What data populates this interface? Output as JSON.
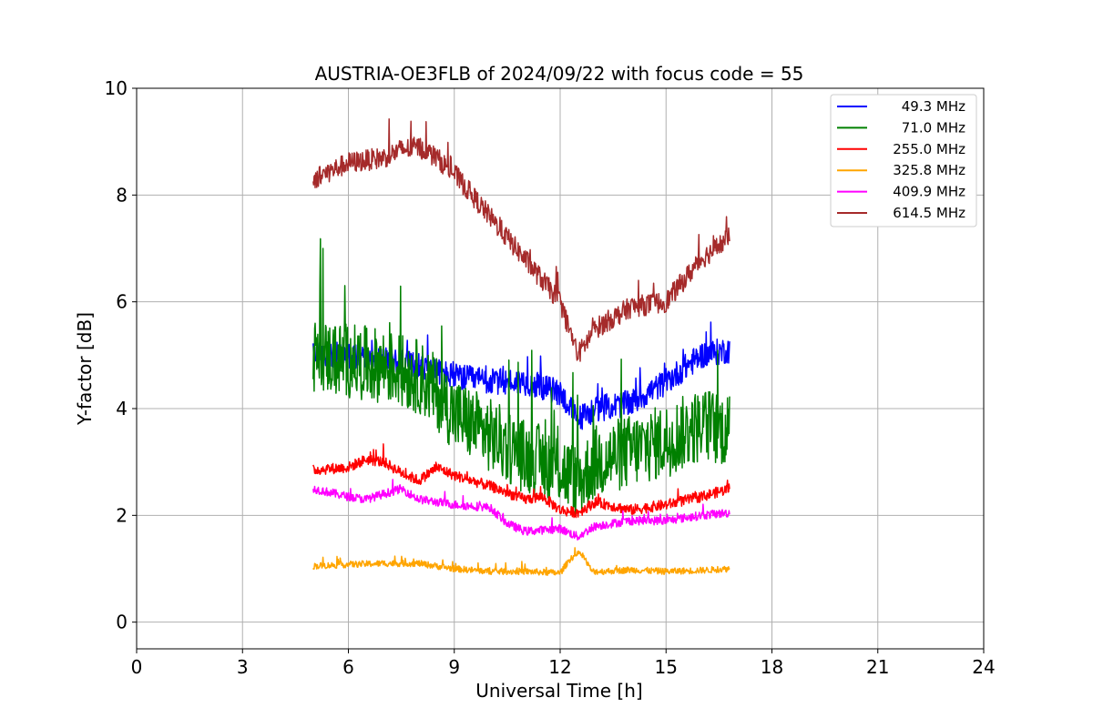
{
  "chart_data": {
    "type": "line",
    "title": "AUSTRIA-OE3FLB of 2024/09/22 with focus code = 55",
    "xlabel": "Universal Time [h]",
    "ylabel": "Y-factor [dB]",
    "xlim": [
      0,
      24
    ],
    "ylim": [
      -0.5,
      10
    ],
    "xticks": [
      "0",
      "3",
      "6",
      "9",
      "12",
      "15",
      "18",
      "21",
      "24"
    ],
    "yticks": [
      "0",
      "2",
      "4",
      "6",
      "8",
      "10"
    ],
    "grid": true,
    "legend_position": "top-right",
    "series": [
      {
        "name": "49.3 MHz",
        "color": "#0000ff",
        "noise": 0.25,
        "x": [
          5.0,
          6.0,
          7.0,
          8.0,
          9.0,
          10.0,
          11.0,
          12.0,
          12.5,
          13.0,
          14.0,
          15.0,
          16.0,
          16.8
        ],
        "y": [
          5.0,
          5.0,
          4.9,
          4.8,
          4.6,
          4.5,
          4.5,
          4.3,
          3.8,
          4.0,
          4.1,
          4.5,
          5.0,
          5.1
        ]
      },
      {
        "name": "71.0 MHz",
        "color": "#008000",
        "noise": 0.7,
        "x": [
          5.0,
          6.0,
          7.0,
          8.0,
          8.5,
          9.0,
          10.0,
          11.0,
          12.0,
          12.5,
          13.0,
          14.0,
          15.0,
          16.0,
          16.8
        ],
        "y": [
          5.0,
          4.9,
          4.8,
          4.6,
          4.3,
          3.9,
          3.5,
          3.1,
          2.9,
          2.6,
          3.0,
          3.2,
          3.4,
          3.7,
          3.6
        ]
      },
      {
        "name": "255.0 MHz",
        "color": "#ff0000",
        "noise": 0.1,
        "x": [
          5.0,
          6.0,
          6.5,
          7.0,
          7.5,
          8.0,
          8.5,
          9.0,
          9.5,
          10.0,
          11.0,
          11.5,
          12.0,
          12.5,
          13.0,
          14.0,
          15.0,
          16.0,
          16.8
        ],
        "y": [
          2.85,
          2.9,
          3.05,
          3.0,
          2.8,
          2.65,
          2.9,
          2.75,
          2.65,
          2.55,
          2.3,
          2.35,
          2.1,
          2.05,
          2.25,
          2.1,
          2.2,
          2.35,
          2.5
        ]
      },
      {
        "name": "325.8 MHz",
        "color": "#ffa500",
        "noise": 0.06,
        "x": [
          5.0,
          6.0,
          7.0,
          8.0,
          9.0,
          10.0,
          11.0,
          12.0,
          12.3,
          12.6,
          12.9,
          13.2,
          14.0,
          15.0,
          16.0,
          16.8
        ],
        "y": [
          1.05,
          1.08,
          1.1,
          1.1,
          1.0,
          0.95,
          0.95,
          0.92,
          1.2,
          1.3,
          0.95,
          0.95,
          0.98,
          0.95,
          0.97,
          1.0
        ]
      },
      {
        "name": "409.9 MHz",
        "color": "#ff00ff",
        "noise": 0.08,
        "x": [
          5.0,
          6.0,
          6.5,
          7.0,
          7.5,
          8.0,
          8.5,
          9.0,
          10.0,
          10.5,
          11.0,
          12.0,
          12.5,
          13.0,
          14.0,
          15.0,
          16.0,
          16.8
        ],
        "y": [
          2.5,
          2.35,
          2.3,
          2.4,
          2.5,
          2.3,
          2.25,
          2.2,
          2.15,
          1.85,
          1.7,
          1.75,
          1.6,
          1.8,
          1.9,
          1.9,
          2.0,
          2.05
        ]
      },
      {
        "name": "614.5 MHz",
        "color": "#a52a2a",
        "noise": 0.2,
        "x": [
          5.0,
          6.0,
          7.0,
          7.5,
          8.0,
          8.5,
          9.0,
          10.0,
          11.0,
          12.0,
          12.5,
          13.0,
          14.0,
          15.0,
          16.0,
          16.8
        ],
        "y": [
          8.3,
          8.6,
          8.7,
          8.85,
          8.9,
          8.7,
          8.4,
          7.6,
          6.8,
          6.0,
          5.0,
          5.5,
          5.9,
          6.0,
          6.8,
          7.2
        ]
      }
    ]
  }
}
